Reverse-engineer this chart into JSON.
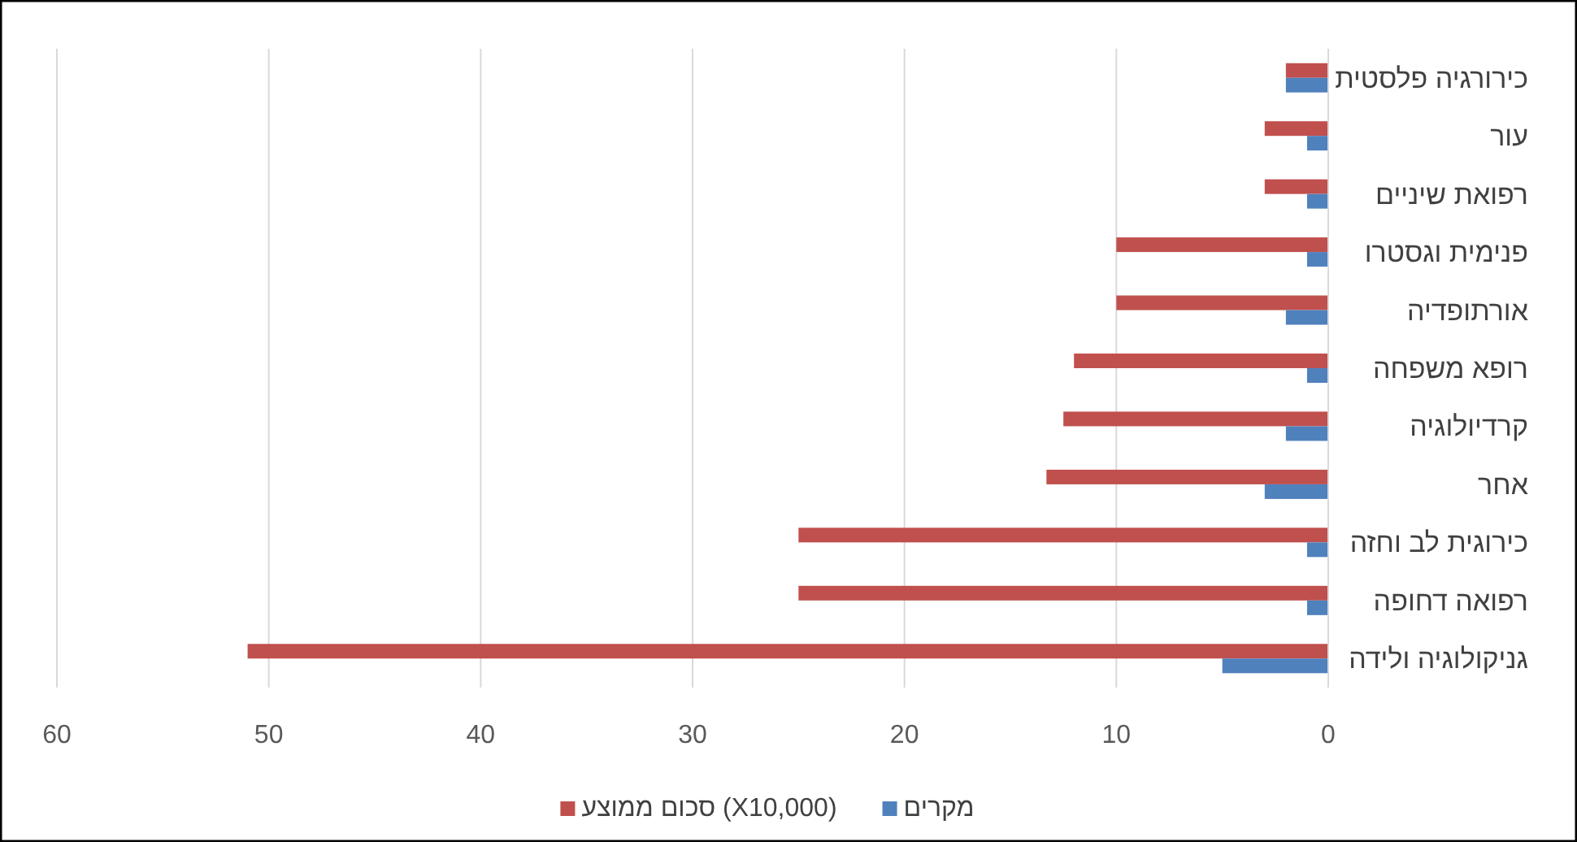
{
  "chart_data": {
    "type": "bar",
    "orientation": "horizontal",
    "categories": [
      "כירורגיה פלסטית",
      "עור",
      "רפואת שיניים",
      "פנימית וגסטרו",
      "אורתופדיה",
      "רופא משפחה",
      "קרדיולוגיה",
      "אחר",
      "כירוגית לב וחזה",
      "רפואה דחופה",
      "גניקולוגיה ולידה"
    ],
    "series": [
      {
        "name": "סכום ממוצע (X10,000)",
        "color": "#c0504d",
        "values": [
          2,
          3,
          3,
          10,
          10,
          12,
          12.5,
          13.3,
          25,
          25,
          51
        ]
      },
      {
        "name": "מקרים",
        "color": "#4f81bd",
        "values": [
          2,
          1,
          1,
          1,
          2,
          1,
          2,
          3,
          1,
          1,
          5
        ]
      }
    ],
    "xlim": [
      60,
      0
    ],
    "xticks": [
      60,
      50,
      40,
      30,
      20,
      10,
      0
    ],
    "grid": "x",
    "legend": "bottom"
  }
}
